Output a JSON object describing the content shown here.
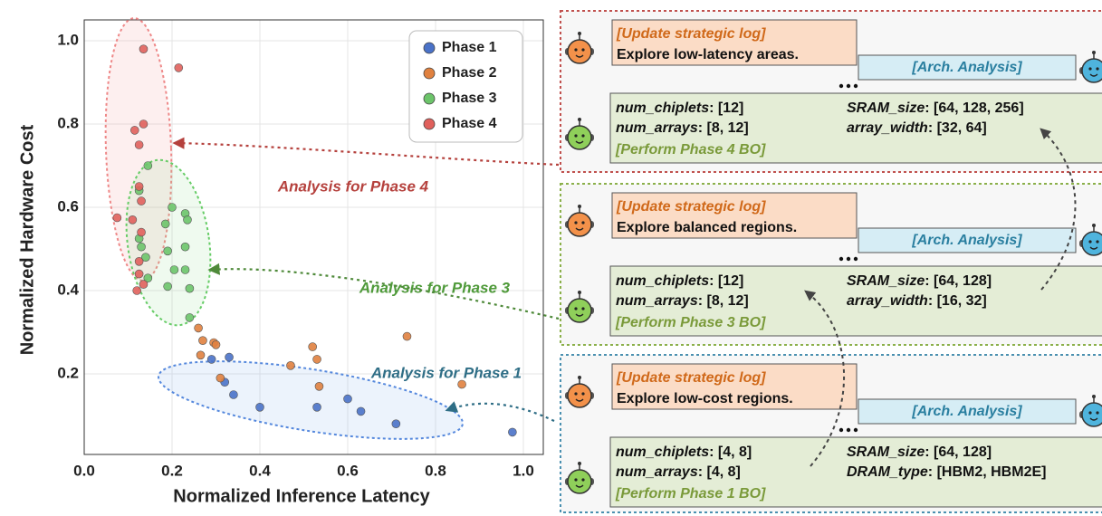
{
  "chart_data": {
    "type": "scatter",
    "xlabel": "Normalized Inference Latency",
    "ylabel": "Normalized Hardware Cost",
    "xlim": [
      0,
      1.05
    ],
    "ylim": [
      0,
      1.05
    ],
    "xticks": [
      {
        "value": 0,
        "label": "0.0"
      },
      0.2,
      0.4,
      0.6,
      0.8,
      {
        "value": 1,
        "label": "1.0"
      }
    ],
    "yticks": [
      0.2,
      0.4,
      0.6,
      0.8,
      {
        "value": 1,
        "label": "1.0"
      }
    ],
    "grid": true,
    "legend": "upper right",
    "series": [
      {
        "name": "Phase 1",
        "color": "#4a72c8",
        "x": [
          0.29,
          0.33,
          0.32,
          0.34,
          0.4,
          0.53,
          0.6,
          0.63,
          0.71,
          0.975
        ],
        "y": [
          0.235,
          0.24,
          0.18,
          0.15,
          0.12,
          0.12,
          0.14,
          0.11,
          0.08,
          0.06
        ]
      },
      {
        "name": "Phase 2",
        "color": "#e0813f",
        "x": [
          0.26,
          0.27,
          0.295,
          0.3,
          0.265,
          0.31,
          0.47,
          0.52,
          0.53,
          0.535,
          0.735,
          0.86
        ],
        "y": [
          0.31,
          0.28,
          0.275,
          0.27,
          0.245,
          0.19,
          0.22,
          0.265,
          0.235,
          0.17,
          0.29,
          0.175
        ]
      },
      {
        "name": "Phase 3",
        "color": "#6cc46a",
        "x": [
          0.145,
          0.125,
          0.2,
          0.23,
          0.235,
          0.185,
          0.125,
          0.13,
          0.23,
          0.14,
          0.19,
          0.205,
          0.145,
          0.19,
          0.24,
          0.23,
          0.24
        ],
        "y": [
          0.7,
          0.64,
          0.6,
          0.585,
          0.57,
          0.56,
          0.525,
          0.505,
          0.505,
          0.48,
          0.495,
          0.45,
          0.43,
          0.41,
          0.405,
          0.45,
          0.335
        ]
      },
      {
        "name": "Phase 4",
        "color": "#e0605c",
        "x": [
          0.135,
          0.215,
          0.135,
          0.115,
          0.125,
          0.125,
          0.13,
          0.075,
          0.11,
          0.13,
          0.125,
          0.125,
          0.12,
          0.135
        ],
        "y": [
          0.98,
          0.935,
          0.8,
          0.785,
          0.75,
          0.65,
          0.615,
          0.575,
          0.57,
          0.54,
          0.47,
          0.44,
          0.4,
          0.415
        ]
      }
    ],
    "annotations": [
      "Analysis for Phase 4",
      "Analysis for Phase 3",
      "Analysis for Phase 1"
    ]
  },
  "panels": [
    {
      "log_title": "[Update strategic log]",
      "log_text": "Explore low-latency areas.",
      "analysis": "[Arch. Analysis]",
      "params": [
        {
          "key": "num_chiplets",
          "value": ": [12]"
        },
        {
          "key": "SRAM_size",
          "value": ": [64, 128, 256]"
        },
        {
          "key": "num_arrays",
          "value": ": [8, 12]"
        },
        {
          "key": "array_width",
          "value": ": [32, 64]"
        }
      ],
      "action": "[Perform Phase 4 BO]"
    },
    {
      "log_title": "[Update strategic log]",
      "log_text": "Explore balanced regions.",
      "analysis": "[Arch. Analysis]",
      "params": [
        {
          "key": "num_chiplets",
          "value": ": [12]"
        },
        {
          "key": "SRAM_size",
          "value": ": [64, 128]"
        },
        {
          "key": "num_arrays",
          "value": ": [8, 12]"
        },
        {
          "key": "array_width",
          "value": ": [16, 32]"
        }
      ],
      "action": "[Perform Phase 3 BO]"
    },
    {
      "log_title": "[Update strategic log]",
      "log_text": "Explore low-cost regions.",
      "analysis": "[Arch. Analysis]",
      "params": [
        {
          "key": "num_chiplets",
          "value": ": [4, 8]"
        },
        {
          "key": "SRAM_size",
          "value": ": [64, 128]"
        },
        {
          "key": "num_arrays",
          "value": ": [4, 8]"
        },
        {
          "key": "DRAM_type",
          "value": ": [HBM2, HBM2E]"
        }
      ],
      "action": "[Perform Phase 1 BO]"
    }
  ]
}
